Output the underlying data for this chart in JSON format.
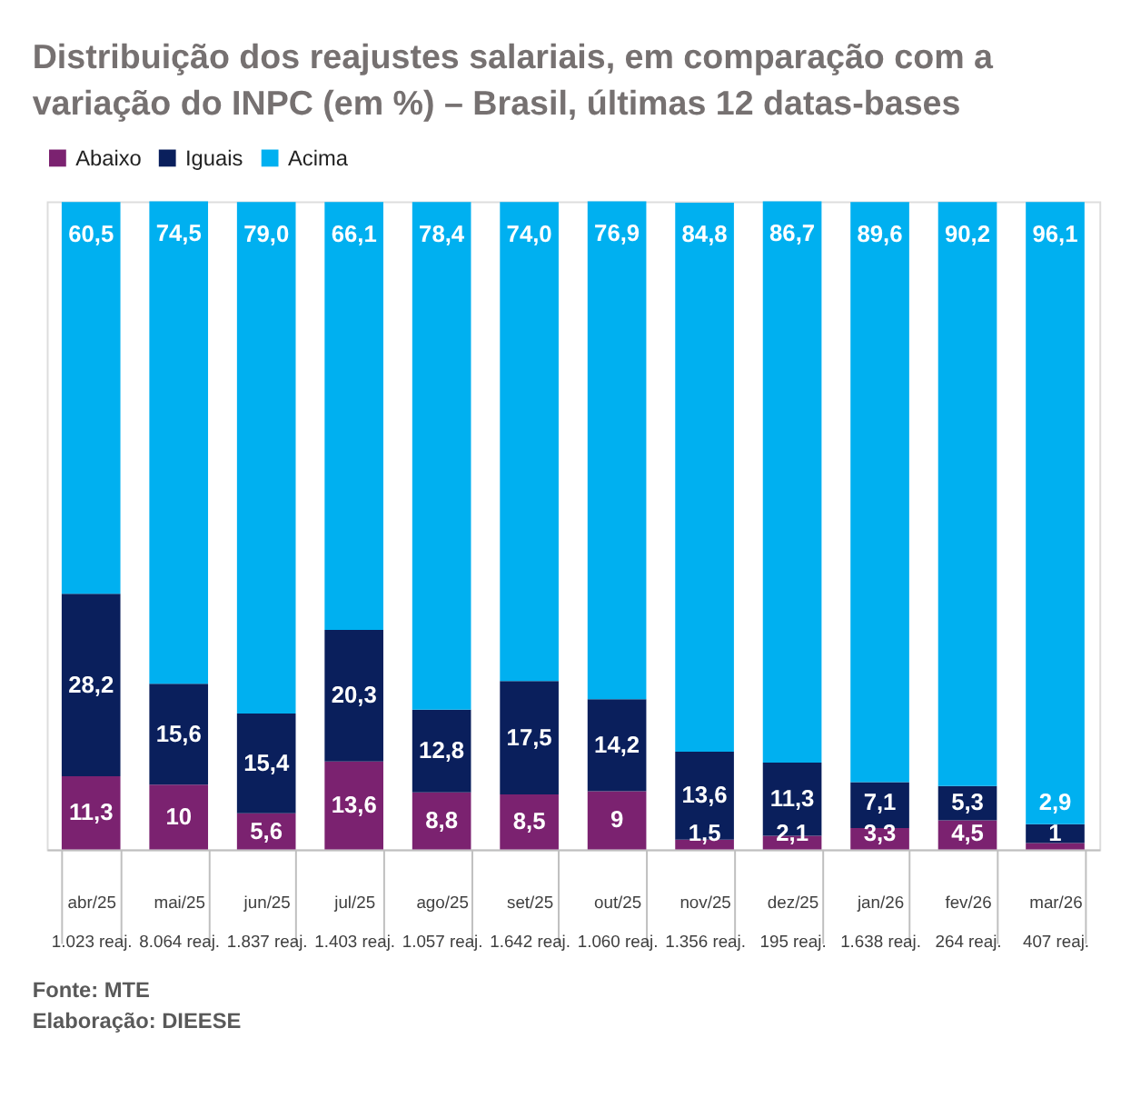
{
  "chart_data": {
    "type": "bar",
    "stacked": true,
    "title": "Distribuição dos reajustes salariais, em comparação com a\nvariação do INPC (em %) – Brasil, últimas 12 datas-bases",
    "categories": [
      "abr/25\n1.023 reaj.",
      "mai/25\n8.064 reaj.",
      "jun/25\n1.837 reaj.",
      "jul/25\n1.403 reaj.",
      "ago/25\n1.057 reaj.",
      "set/25\n1.642 reaj.",
      "out/25\n1.060 reaj.",
      "nov/25\n1.356 reaj.",
      "dez/25\n195 reaj.",
      "jan/26\n1.638 reaj.",
      "fev/26\n264 reaj.",
      "mar/26\n407 reaj."
    ],
    "series": [
      {
        "name": "Abaixo",
        "color": "#7b2270",
        "values": [
          11.3,
          10,
          5.6,
          13.6,
          8.8,
          8.5,
          9,
          1.5,
          2.1,
          3.3,
          4.5,
          1
        ],
        "value_labels": [
          "11,3",
          "10",
          "5,6",
          "13,6",
          "8,8",
          "8,5",
          "9",
          "1,5",
          "2,1",
          "3,3",
          "4,5",
          "1"
        ]
      },
      {
        "name": "Iguais",
        "color": "#0a1f5c",
        "values": [
          28.2,
          15.6,
          15.4,
          20.3,
          12.8,
          17.5,
          14.2,
          13.6,
          11.3,
          7.1,
          5.3,
          2.9
        ],
        "value_labels": [
          "28,2",
          "15,6",
          "15,4",
          "20,3",
          "12,8",
          "17,5",
          "14,2",
          "13,6",
          "11,3",
          "7,1",
          "5,3",
          "2,9"
        ]
      },
      {
        "name": "Acima",
        "color": "#00b0f0",
        "values": [
          60.5,
          74.5,
          79.0,
          66.1,
          78.4,
          74.0,
          76.9,
          84.8,
          86.7,
          89.6,
          90.2,
          96.1
        ],
        "value_labels": [
          "60,5",
          "74,5",
          "79,0",
          "66,1",
          "78,4",
          "74,0",
          "76,9",
          "84,8",
          "86,7",
          "89,6",
          "90,2",
          "96,1"
        ]
      }
    ],
    "legend": "top",
    "grid": false,
    "tick_labels": "x",
    "annotations": [
      "Fonte: MTE",
      "Elaboração: DIEESE"
    ]
  }
}
